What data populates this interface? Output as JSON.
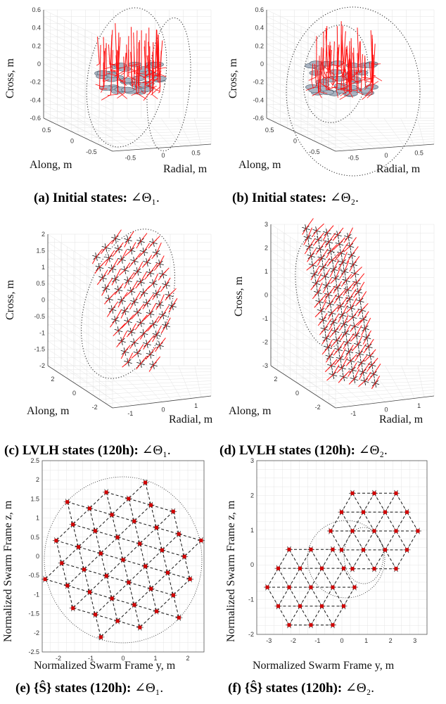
{
  "figure": {
    "panels": [
      {
        "id": "a",
        "caption_prefix": "(a) Initial states:",
        "caption_angle": "∠Θ₁.",
        "ylabel": "Cross, m",
        "xlabel_left": "Along, m",
        "xlabel_right": "Radial, m",
        "ticks_vertical": [
          "0.6",
          "0.4",
          "0.2",
          "0",
          "-0.2",
          "-0.4",
          "-0.6"
        ],
        "ticks_along": [
          "0.5",
          "0",
          "-0.5"
        ],
        "ticks_radial": [
          "-0.5",
          "0",
          "0.5"
        ]
      },
      {
        "id": "b",
        "caption_prefix": "(b) Initial states:",
        "caption_angle": "∠Θ₂.",
        "ylabel": "Cross, m",
        "xlabel_left": "Along, m",
        "xlabel_right": "Radial, m",
        "ticks_vertical": [
          "0.6",
          "0.4",
          "0.2",
          "0",
          "-0.2",
          "-0.4",
          "-0.6"
        ],
        "ticks_along": [
          "0.5",
          "0",
          "-0.5"
        ],
        "ticks_radial": [
          "-0.5",
          "0",
          "0.5"
        ]
      },
      {
        "id": "c",
        "caption_prefix": "(c) LVLH states (120h):",
        "caption_angle": "∠Θ₁.",
        "ylabel": "Cross, m",
        "xlabel_left": "Along, m",
        "xlabel_right": "Radial, m",
        "ticks_vertical": [
          "2",
          "1.5",
          "1",
          "0.5",
          "0",
          "-0.5",
          "-1",
          "-1.5",
          "-2"
        ],
        "ticks_along": [
          "2",
          "0",
          "-2"
        ],
        "ticks_radial": [
          "-1",
          "0",
          "1"
        ]
      },
      {
        "id": "d",
        "caption_prefix": "(d) LVLH states (120h):",
        "caption_angle": "∠Θ₂.",
        "ylabel": "Cross, m",
        "xlabel_left": "Along, m",
        "xlabel_right": "Radial, m",
        "ticks_vertical": [
          "3",
          "2",
          "1",
          "0",
          "-1",
          "-2",
          "-3"
        ],
        "ticks_along": [
          "2",
          "0",
          "-2"
        ],
        "ticks_radial": [
          "-1",
          "0",
          "1"
        ]
      },
      {
        "id": "e",
        "caption_prefix": "(e) {Ŝ} states (120h):",
        "caption_angle": "∠Θ₁.",
        "ylabel": "Normalized Swarm Frame z, m",
        "xlabel": "Normalized Swarm Frame y, m",
        "ticks_y": [
          "2.5",
          "2",
          "1.5",
          "1",
          "0.5",
          "0",
          "-0.5",
          "-1",
          "-1.5",
          "-2",
          "-2.5"
        ],
        "ticks_x": [
          "-2",
          "-1",
          "0",
          "1",
          "2"
        ]
      },
      {
        "id": "f",
        "caption_prefix": "(f) {Ŝ} states (120h):",
        "caption_angle": "∠Θ₂.",
        "ylabel": "Normalized Swarm Frame z, m",
        "xlabel": "Normalized Swarm Frame y, m",
        "ticks_y": [
          "3",
          "2",
          "1",
          "0",
          "-1",
          "-2"
        ],
        "ticks_x": [
          "-3",
          "-2",
          "-1",
          "0",
          "1",
          "2",
          "3"
        ]
      }
    ]
  }
}
